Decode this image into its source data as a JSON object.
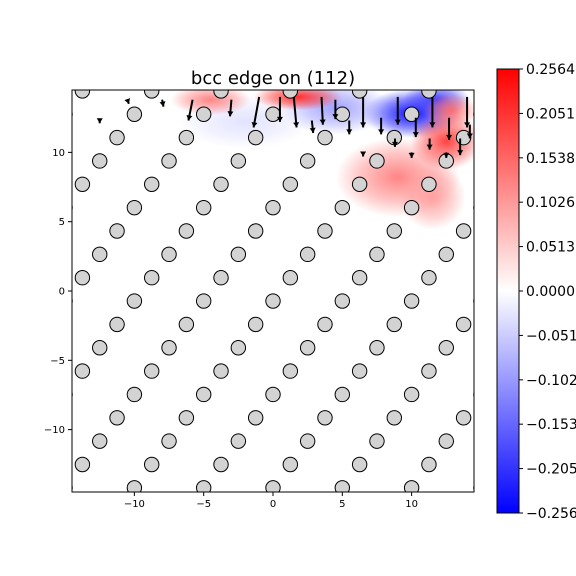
{
  "chart_data": {
    "type": "heatmap",
    "title": "bcc edge on (112)",
    "xlabel": "",
    "ylabel": "",
    "xlim": [
      -14.5,
      14.5
    ],
    "ylim": [
      -14.5,
      14.5
    ],
    "x_ticks": [
      -10,
      -5,
      0,
      5,
      10
    ],
    "x_tick_labels": [
      "−10",
      "−5",
      "0",
      "5",
      "10"
    ],
    "y_ticks": [
      -10,
      -5,
      0,
      5,
      10
    ],
    "y_tick_labels": [
      "−10",
      "−5",
      "0",
      "5",
      "10"
    ],
    "grid": false,
    "colormap": "bwr",
    "colorbar": {
      "min": -0.2564,
      "max": 0.2564,
      "ticks": [
        0.2564,
        0.2051,
        0.1538,
        0.1026,
        0.0513,
        0.0,
        -0.0513,
        -0.1026,
        -0.1538,
        -0.2051,
        -0.2564
      ],
      "tick_labels": [
        "0.2564",
        "0.2051",
        "0.1538",
        "0.1026",
        "0.0513",
        "0.0000",
        "−0.0513",
        "−0.1026",
        "−0.1538",
        "−0.2051",
        "−0.2564"
      ]
    },
    "atoms": {
      "lattice_a": 5.0,
      "lattice_b": 2.45,
      "shift_per_row": 1.25,
      "x_origin": 0.0,
      "y_origin": -14.2,
      "rows": 18,
      "face_color": "#d3d3d3",
      "edge_color": "#000000"
    },
    "color_field_blobs": [
      {
        "x": 10.0,
        "y": 12.8,
        "value": -0.2564,
        "sx": 2.2,
        "sy": 1.1
      },
      {
        "x": 11.8,
        "y": 13.8,
        "value": -0.2,
        "sx": 1.5,
        "sy": 0.8
      },
      {
        "x": 4.5,
        "y": 13.2,
        "value": -0.1,
        "sx": 2.5,
        "sy": 1.2
      },
      {
        "x": -2.0,
        "y": 12.2,
        "value": -0.03,
        "sx": 3.0,
        "sy": 1.2
      },
      {
        "x": 1.8,
        "y": 14.0,
        "value": 0.22,
        "sx": 2.0,
        "sy": 0.6
      },
      {
        "x": -4.5,
        "y": 13.8,
        "value": 0.13,
        "sx": 1.8,
        "sy": 0.7
      },
      {
        "x": 9.0,
        "y": 8.2,
        "value": 0.13,
        "sx": 2.8,
        "sy": 1.8
      },
      {
        "x": 12.5,
        "y": 10.8,
        "value": 0.2,
        "sx": 1.6,
        "sy": 1.3
      },
      {
        "x": 11.5,
        "y": 6.8,
        "value": 0.1,
        "sx": 1.5,
        "sy": 1.5
      },
      {
        "x": 12.8,
        "y": 13.0,
        "value": 0.15,
        "sx": 1.2,
        "sy": 0.8
      }
    ],
    "displacement_arrows": [
      {
        "x": -1.0,
        "y": 14.0,
        "dx": -0.4,
        "dy": -2.2
      },
      {
        "x": 0.5,
        "y": 14.0,
        "dx": 0.0,
        "dy": -1.8
      },
      {
        "x": 1.5,
        "y": 14.0,
        "dx": 0.2,
        "dy": -2.2
      },
      {
        "x": 3.5,
        "y": 14.0,
        "dx": 0.1,
        "dy": -2.0
      },
      {
        "x": 6.5,
        "y": 14.0,
        "dx": 0.0,
        "dy": -2.2
      },
      {
        "x": 9.0,
        "y": 14.0,
        "dx": 0.0,
        "dy": -2.0
      },
      {
        "x": 11.5,
        "y": 14.0,
        "dx": 0.0,
        "dy": -2.2
      },
      {
        "x": 14.0,
        "y": 14.0,
        "dx": 0.0,
        "dy": -2.2
      },
      {
        "x": -5.8,
        "y": 13.8,
        "dx": -0.3,
        "dy": -1.5
      },
      {
        "x": -3.0,
        "y": 13.8,
        "dx": -0.1,
        "dy": -1.2
      },
      {
        "x": 4.5,
        "y": 13.8,
        "dx": 0.0,
        "dy": -1.4
      },
      {
        "x": 2.8,
        "y": 12.3,
        "dx": 0.1,
        "dy": -0.9
      },
      {
        "x": 5.5,
        "y": 12.3,
        "dx": 0.0,
        "dy": -1.0
      },
      {
        "x": 7.8,
        "y": 12.5,
        "dx": 0.0,
        "dy": -1.2
      },
      {
        "x": 10.3,
        "y": 12.5,
        "dx": 0.0,
        "dy": -1.4
      },
      {
        "x": 12.7,
        "y": 12.5,
        "dx": 0.0,
        "dy": -1.6
      },
      {
        "x": 14.2,
        "y": 12.0,
        "dx": 0.0,
        "dy": -1.0
      },
      {
        "x": 8.8,
        "y": 11.0,
        "dx": 0.0,
        "dy": -0.6
      },
      {
        "x": 11.3,
        "y": 11.0,
        "dx": 0.0,
        "dy": -0.8
      },
      {
        "x": 13.5,
        "y": 11.0,
        "dx": 0.0,
        "dy": -1.2
      },
      {
        "x": 10.0,
        "y": 10.0,
        "dx": 0.0,
        "dy": -0.4
      },
      {
        "x": 12.5,
        "y": 10.0,
        "dx": 0.0,
        "dy": -0.4
      },
      {
        "x": 6.5,
        "y": 10.0,
        "dx": 0.0,
        "dy": -0.3
      },
      {
        "x": -8.0,
        "y": 13.8,
        "dx": 0.1,
        "dy": -0.5
      },
      {
        "x": -10.5,
        "y": 13.8,
        "dx": 0.1,
        "dy": -0.3
      },
      {
        "x": -12.5,
        "y": 12.3,
        "dx": 0.0,
        "dy": -0.2
      }
    ]
  }
}
